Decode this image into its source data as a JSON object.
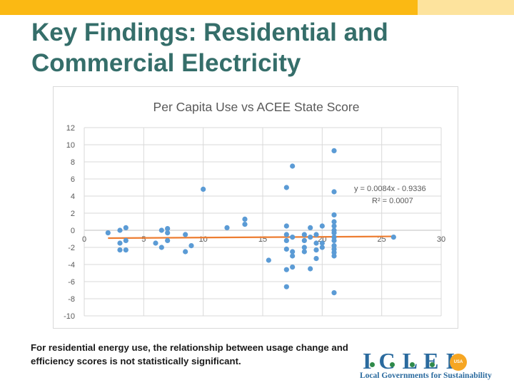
{
  "slide": {
    "title": "Key Findings: Residential and\nCommercial Electricity",
    "caption": "For residential energy use, the relationship between usage change and efficiency scores is not statistically significant."
  },
  "logo": {
    "letters": "ICLEI",
    "badge": "USA",
    "tagline": "Local Governments for Sustainability"
  },
  "colors": {
    "title": "#356e6a",
    "topbar": "#fbb913",
    "points": "#5b9bd5",
    "trendline": "#ed7d31"
  },
  "chart_data": {
    "type": "scatter",
    "title": "Per Capita Use vs ACEE State Score",
    "xlim": [
      0,
      30
    ],
    "ylim": [
      -10,
      12
    ],
    "x_ticks": [
      0,
      5,
      10,
      15,
      20,
      25,
      30
    ],
    "y_ticks": [
      -10,
      -8,
      -6,
      -4,
      -2,
      0,
      2,
      4,
      6,
      8,
      10,
      12
    ],
    "grid": true,
    "series": [
      {
        "points": [
          [
            2,
            -0.3
          ],
          [
            3,
            0
          ],
          [
            3,
            -1.5
          ],
          [
            3,
            -2.3
          ],
          [
            3.5,
            0.3
          ],
          [
            3.5,
            -1.2
          ],
          [
            3.5,
            -2.3
          ],
          [
            6,
            -1.5
          ],
          [
            6.5,
            0
          ],
          [
            6.5,
            -2
          ],
          [
            7,
            0.2
          ],
          [
            7,
            -0.3
          ],
          [
            7,
            -1.2
          ],
          [
            8.5,
            -0.5
          ],
          [
            8.5,
            -2.5
          ],
          [
            9,
            -1.8
          ],
          [
            10,
            4.8
          ],
          [
            12,
            0.3
          ],
          [
            13.5,
            1.3
          ],
          [
            13.5,
            0.7
          ],
          [
            15.5,
            -3.5
          ],
          [
            17,
            5
          ],
          [
            17,
            0.5
          ],
          [
            17,
            -0.5
          ],
          [
            17,
            -1.2
          ],
          [
            17,
            -2.2
          ],
          [
            17,
            -4.6
          ],
          [
            17,
            -6.6
          ],
          [
            17.5,
            7.5
          ],
          [
            17.5,
            -0.8
          ],
          [
            17.5,
            -2.5
          ],
          [
            17.5,
            -3
          ],
          [
            17.5,
            -4.3
          ],
          [
            18.5,
            -0.5
          ],
          [
            18.5,
            -1.2
          ],
          [
            18.5,
            -2
          ],
          [
            18.5,
            -2.5
          ],
          [
            19,
            0.3
          ],
          [
            19,
            -0.8
          ],
          [
            19,
            -4.5
          ],
          [
            19.5,
            -0.5
          ],
          [
            19.5,
            -1.5
          ],
          [
            19.5,
            -2.3
          ],
          [
            19.5,
            -3.3
          ],
          [
            20,
            0.5
          ],
          [
            20,
            -1.5
          ],
          [
            20,
            -2
          ],
          [
            21,
            9.3
          ],
          [
            21,
            4.5
          ],
          [
            21,
            1.8
          ],
          [
            21,
            1
          ],
          [
            21,
            0.5
          ],
          [
            21,
            0
          ],
          [
            21,
            -0.3
          ],
          [
            21,
            -0.8
          ],
          [
            21,
            -1.2
          ],
          [
            21,
            -1.8
          ],
          [
            21,
            -2.2
          ],
          [
            21,
            -2.6
          ],
          [
            21,
            -3
          ],
          [
            21,
            -7.3
          ],
          [
            26,
            -0.8
          ]
        ]
      }
    ],
    "trendline": {
      "x_range": [
        2,
        26
      ],
      "slope": 0.0084,
      "intercept": -0.9336,
      "equation": "y = 0.0084x - 0.9336",
      "r_squared": "R² = 0.0007"
    }
  }
}
